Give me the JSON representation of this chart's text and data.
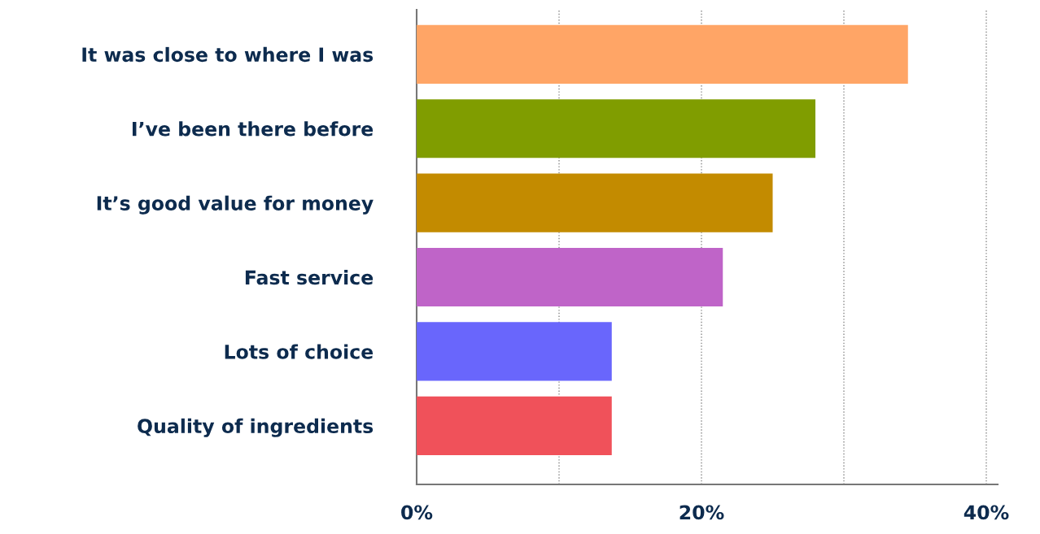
{
  "chart_data": {
    "type": "bar",
    "orientation": "horizontal",
    "categories": [
      "It was close to where I was",
      "I’ve been there before",
      "It’s good value for money",
      "Fast service",
      "Lots of choice",
      "Quality of ingredients"
    ],
    "values": [
      34.5,
      28,
      25,
      21.5,
      13.7,
      13.7
    ],
    "colors": [
      "#ffa566",
      "#809d00",
      "#c38b00",
      "#bf64c8",
      "#6966fc",
      "#f0515a"
    ],
    "xlim": [
      0,
      40.8
    ],
    "xticks": [
      {
        "value": 0,
        "label": "0%"
      },
      {
        "value": 10,
        "label": null
      },
      {
        "value": 20,
        "label": "20%"
      },
      {
        "value": 30,
        "label": null
      },
      {
        "value": 40,
        "label": "40%"
      }
    ],
    "grid": "x"
  }
}
